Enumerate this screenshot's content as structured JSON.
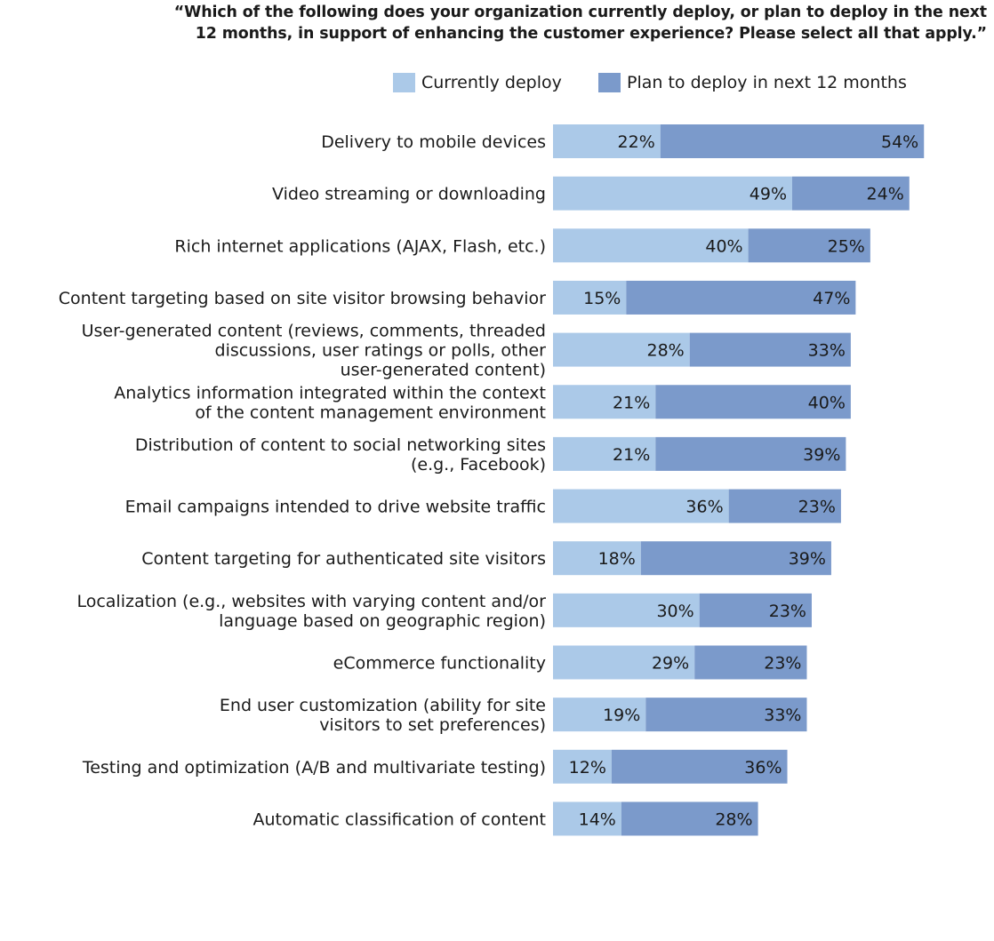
{
  "chart_data": {
    "type": "bar",
    "orientation": "horizontal",
    "stacked": true,
    "title": "“Which of the following does your organization currently deploy, or plan to deploy in the next 12 months, in support of enhancing the customer experience? Please select all that apply.”",
    "title_lines": [
      "“Which of the following does your organization currently deploy, or plan to deploy in the next",
      "12 months, in support of enhancing the customer experience? Please select all that apply.”"
    ],
    "legend_position": "top-right",
    "grid": false,
    "xlim": [
      0,
      100
    ],
    "value_suffix": "%",
    "categories": [
      [
        "Delivery to mobile devices"
      ],
      [
        "Video streaming or downloading"
      ],
      [
        "Rich internet applications (AJAX, Flash, etc.)"
      ],
      [
        "Content targeting based on site visitor browsing behavior"
      ],
      [
        "User-generated content (reviews, comments, threaded",
        "discussions,  user ratings or polls, other",
        "user-generated content)"
      ],
      [
        "Analytics information integrated within the context",
        "of the content management environment"
      ],
      [
        "Distribution of content to social networking sites",
        "(e.g., Facebook)"
      ],
      [
        "Email campaigns intended to drive website traffic"
      ],
      [
        "Content targeting for authenticated site visitors"
      ],
      [
        "Localization (e.g., websites with varying content and/or",
        "language based on geographic region)"
      ],
      [
        "eCommerce functionality"
      ],
      [
        "End user customization (ability for site",
        "visitors to set preferences)"
      ],
      [
        "Testing and optimization (A/B and multivariate testing)"
      ],
      [
        "Automatic classification of content"
      ]
    ],
    "series": [
      {
        "name": "Currently deploy",
        "color": "#abc9e8",
        "values": [
          22,
          49,
          40,
          15,
          28,
          21,
          21,
          36,
          18,
          30,
          29,
          19,
          12,
          14
        ]
      },
      {
        "name": "Plan to deploy in next 12 months",
        "color": "#7b9acb",
        "values": [
          54,
          24,
          25,
          47,
          33,
          40,
          39,
          23,
          39,
          23,
          23,
          33,
          36,
          28
        ]
      }
    ]
  }
}
